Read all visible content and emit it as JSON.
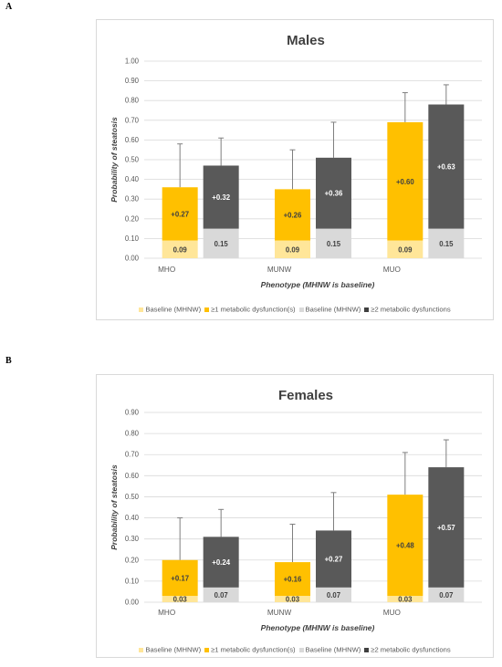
{
  "panels": [
    {
      "letter": "A",
      "chart_data": {
        "type": "bar",
        "title": "Males",
        "xlabel": "Phenotype (MHNW is baseline)",
        "ylabel": "Probability of steatosis",
        "ylim": [
          0,
          1.0
        ],
        "yticks": [
          "0.00",
          "0.10",
          "0.20",
          "0.30",
          "0.40",
          "0.50",
          "0.60",
          "0.70",
          "0.80",
          "0.90",
          "1.00"
        ],
        "categories": [
          "MHO",
          "MUNW",
          "MUO"
        ],
        "bar_groups": [
          {
            "baseline": 0.09,
            "baseline_label": "0.09",
            "increment": 0.27,
            "increment_label": "+0.27",
            "error_top": 0.58
          },
          {
            "baseline": 0.15,
            "baseline_label": "0.15",
            "increment": 0.32,
            "increment_label": "+0.32",
            "error_top": 0.61
          }
        ],
        "series": [
          {
            "name": "Baseline (MHNW)",
            "group": 0,
            "part": "baseline",
            "values": [
              0.09,
              0.09,
              0.09
            ],
            "labels": [
              "0.09",
              "0.09",
              "0.09"
            ]
          },
          {
            "name": "≥1 metabolic dysfunction(s)",
            "group": 0,
            "part": "increment",
            "values": [
              0.27,
              0.26,
              0.6
            ],
            "labels": [
              "+0.27",
              "+0.26",
              "+0.60"
            ],
            "error_top": [
              0.58,
              0.55,
              0.84
            ]
          },
          {
            "name": "Baseline (MHNW)",
            "group": 1,
            "part": "baseline",
            "values": [
              0.15,
              0.15,
              0.15
            ],
            "labels": [
              "0.15",
              "0.15",
              "0.15"
            ]
          },
          {
            "name": "≥2 metabolic dysfunctions",
            "group": 1,
            "part": "increment",
            "values": [
              0.32,
              0.36,
              0.63
            ],
            "labels": [
              "+0.32",
              "+0.36",
              "+0.63"
            ],
            "error_top": [
              0.61,
              0.69,
              0.88
            ]
          }
        ],
        "legend": [
          {
            "name": "Baseline (MHNW)",
            "color": "#ffe699"
          },
          {
            "name": "≥1 metabolic dysfunction(s)",
            "color": "#ffc000"
          },
          {
            "name": "Baseline (MHNW)",
            "color": "#d9d9d9"
          },
          {
            "name": "≥2 metabolic dysfunctions",
            "color": "#404040"
          }
        ],
        "legend_position": "bottom",
        "grid": true
      }
    },
    {
      "letter": "B",
      "chart_data": {
        "type": "bar",
        "title": "Females",
        "xlabel": "Phenotype (MHNW is baseline)",
        "ylabel": "Probability of steatosis",
        "ylim": [
          0,
          0.9
        ],
        "yticks": [
          "0.00",
          "0.10",
          "0.20",
          "0.30",
          "0.40",
          "0.50",
          "0.60",
          "0.70",
          "0.80",
          "0.90"
        ],
        "categories": [
          "MHO",
          "MUNW",
          "MUO"
        ],
        "series": [
          {
            "name": "Baseline (MHNW)",
            "group": 0,
            "part": "baseline",
            "values": [
              0.03,
              0.03,
              0.03
            ],
            "labels": [
              "0.03",
              "0.03",
              "0.03"
            ]
          },
          {
            "name": "≥1 metabolic dysfunction(s)",
            "group": 0,
            "part": "increment",
            "values": [
              0.17,
              0.16,
              0.48
            ],
            "labels": [
              "+0.17",
              "+0.16",
              "+0.48"
            ],
            "error_top": [
              0.4,
              0.37,
              0.71
            ]
          },
          {
            "name": "Baseline (MHNW)",
            "group": 1,
            "part": "baseline",
            "values": [
              0.07,
              0.07,
              0.07
            ],
            "labels": [
              "0.07",
              "0.07",
              "0.07"
            ]
          },
          {
            "name": "≥2 metabolic dysfunctions",
            "group": 1,
            "part": "increment",
            "values": [
              0.24,
              0.27,
              0.57
            ],
            "labels": [
              "+0.24",
              "+0.27",
              "+0.57"
            ],
            "error_top": [
              0.44,
              0.52,
              0.77
            ]
          }
        ],
        "legend": [
          {
            "name": "Baseline (MHNW)",
            "color": "#ffe699"
          },
          {
            "name": "≥1 metabolic dysfunction(s)",
            "color": "#ffc000"
          },
          {
            "name": "Baseline (MHNW)",
            "color": "#d9d9d9"
          },
          {
            "name": "≥2 metabolic dysfunctions",
            "color": "#404040"
          }
        ],
        "legend_position": "bottom",
        "grid": true
      }
    }
  ],
  "colors": {
    "baseline_group0": "#ffe699",
    "increment_group0": "#ffc000",
    "baseline_group1": "#d9d9d9",
    "increment_group1": "#595959",
    "label_dark": "#404040",
    "label_light": "#ffffff",
    "grid": "#d9d9d9",
    "axis_text": "#595959",
    "error_bar": "#7f7f7f"
  }
}
